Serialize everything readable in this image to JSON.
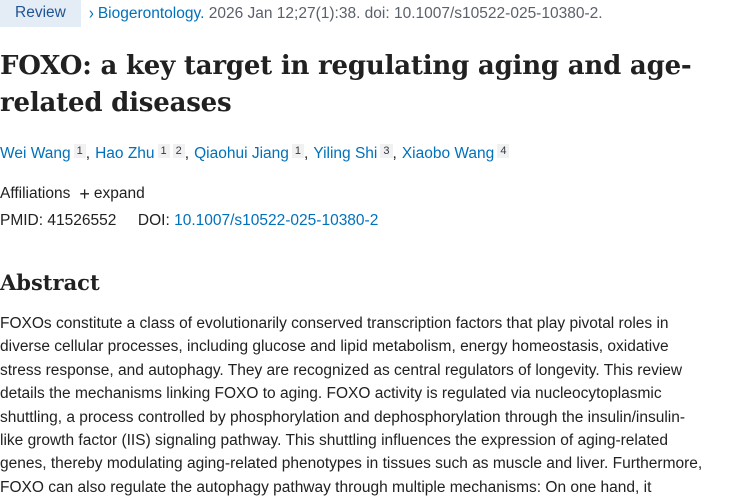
{
  "publication": {
    "badge": "Review",
    "journal": "Biogerontology.",
    "citation": "2026 Jan 12;27(1):38. doi: 10.1007/s10522-025-10380-2."
  },
  "article": {
    "title": "FOXO: a key target in regulating aging and age-related diseases"
  },
  "authors": [
    {
      "name": "Wei Wang",
      "affs": [
        "1"
      ]
    },
    {
      "name": "Hao Zhu",
      "affs": [
        "1",
        "2"
      ]
    },
    {
      "name": "Qiaohui Jiang",
      "affs": [
        "1"
      ]
    },
    {
      "name": "Yiling Shi",
      "affs": [
        "3"
      ]
    },
    {
      "name": "Xiaobo Wang",
      "affs": [
        "4"
      ]
    }
  ],
  "affiliations": {
    "label": "Affiliations",
    "expand_label": "expand"
  },
  "identifiers": {
    "pmid_label": "PMID:",
    "pmid": "41526552",
    "doi_label": "DOI:",
    "doi": "10.1007/s10522-025-10380-2"
  },
  "abstract": {
    "heading": "Abstract",
    "lines": [
      "FOXOs constitute a class of evolutionarily conserved transcription factors that play pivotal roles in",
      "diverse cellular processes, including glucose and lipid metabolism, energy homeostasis, oxidative",
      "stress response, and autophagy. They are recognized as central regulators of longevity. This review",
      "details the mechanisms linking FOXO to aging. FOXO activity is regulated via nucleocytoplasmic",
      "shuttling, a process controlled by phosphorylation and dephosphorylation through the insulin/insulin-",
      "like growth factor (IIS) signaling pathway. This shuttling influences the expression of aging-related",
      "genes, thereby modulating aging-related phenotypes in tissues such as muscle and liver. Furthermore,",
      "FOXO can also regulate the autophagy pathway through multiple mechanisms: On one hand, it"
    ]
  }
}
